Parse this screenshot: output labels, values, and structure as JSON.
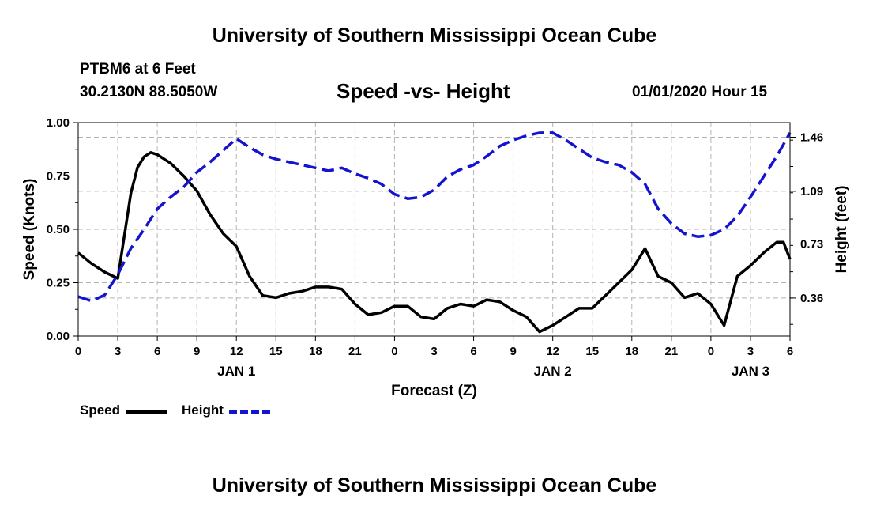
{
  "header": {
    "title": "University of Southern Mississippi Ocean Cube",
    "station": "PTBM6 at 6 Feet",
    "coords": "30.2130N 88.5050W",
    "chart_title": "Speed -vs- Height",
    "run_time": "01/01/2020 Hour 15"
  },
  "footer": {
    "title": "University of Southern Mississippi Ocean Cube"
  },
  "legend": {
    "speed_label": "Speed",
    "height_label": "Height"
  },
  "colors": {
    "speed": "#000000",
    "height": "#1414d0",
    "grid": "#b4b4b4"
  },
  "chart_data": {
    "type": "line",
    "title": "Speed -vs- Height",
    "xlabel": "Forecast (Z)",
    "ylabel": "Speed (Knots)",
    "y2label": "Height (feet)",
    "grid": true,
    "xlim": [
      0,
      54
    ],
    "ylim": [
      0,
      1.0
    ],
    "y2lim": [
      0.1,
      1.56
    ],
    "x_ticks": [
      0,
      3,
      6,
      9,
      12,
      15,
      18,
      21,
      24,
      27,
      30,
      33,
      36,
      39,
      42,
      45,
      48,
      51,
      54
    ],
    "x_tick_labels": [
      "0",
      "3",
      "6",
      "9",
      "12",
      "15",
      "18",
      "21",
      "0",
      "3",
      "6",
      "9",
      "12",
      "15",
      "18",
      "21",
      "0",
      "3",
      "6"
    ],
    "day_labels": [
      {
        "x": 12,
        "label": "JAN 1"
      },
      {
        "x": 36,
        "label": "JAN 2"
      },
      {
        "x": 51,
        "label": "JAN 3"
      }
    ],
    "y_ticks": [
      0.0,
      0.25,
      0.5,
      0.75,
      1.0
    ],
    "y_tick_labels": [
      "0.00",
      "0.25",
      "0.50",
      "0.75",
      "1.00"
    ],
    "y2_ticks": [
      0.36,
      0.73,
      1.09,
      1.46
    ],
    "y2_tick_labels": [
      "0.36",
      "0.73",
      "1.09",
      "1.46"
    ],
    "series": [
      {
        "name": "Speed",
        "axis": "left",
        "style": "solid",
        "x": [
          0,
          1,
          2,
          3,
          4,
          4.5,
          5,
          5.5,
          6,
          7,
          8,
          9,
          10,
          11,
          12,
          13,
          14,
          15,
          16,
          17,
          18,
          19,
          20,
          21,
          22,
          23,
          24,
          25,
          26,
          27,
          28,
          29,
          30,
          31,
          32,
          33,
          34,
          35,
          36,
          37,
          38,
          39,
          40,
          41,
          42,
          43,
          44,
          45,
          46,
          47,
          48,
          49,
          50,
          51,
          52,
          53,
          53.5,
          54
        ],
        "values": [
          0.39,
          0.34,
          0.3,
          0.27,
          0.67,
          0.79,
          0.84,
          0.86,
          0.85,
          0.81,
          0.75,
          0.68,
          0.57,
          0.48,
          0.42,
          0.28,
          0.19,
          0.18,
          0.2,
          0.21,
          0.23,
          0.23,
          0.22,
          0.15,
          0.1,
          0.11,
          0.14,
          0.14,
          0.09,
          0.08,
          0.13,
          0.15,
          0.14,
          0.17,
          0.16,
          0.12,
          0.09,
          0.02,
          0.05,
          0.09,
          0.13,
          0.13,
          0.19,
          0.25,
          0.31,
          0.41,
          0.28,
          0.25,
          0.18,
          0.2,
          0.15,
          0.05,
          0.28,
          0.33,
          0.39,
          0.44,
          0.44,
          0.36
        ]
      },
      {
        "name": "Height",
        "axis": "right",
        "style": "dashed",
        "x": [
          0,
          1,
          2,
          3,
          4,
          5,
          6,
          7,
          8,
          9,
          10,
          11,
          12,
          13,
          14,
          15,
          16,
          17,
          18,
          19,
          20,
          21,
          22,
          23,
          24,
          25,
          26,
          27,
          28,
          29,
          30,
          31,
          32,
          33,
          34,
          35,
          36,
          37,
          38,
          39,
          40,
          41,
          42,
          43,
          44,
          45,
          46,
          47,
          48,
          49,
          50,
          51,
          52,
          53,
          54
        ],
        "values": [
          0.37,
          0.34,
          0.38,
          0.52,
          0.7,
          0.83,
          0.97,
          1.05,
          1.12,
          1.22,
          1.29,
          1.37,
          1.45,
          1.39,
          1.34,
          1.31,
          1.29,
          1.27,
          1.25,
          1.23,
          1.25,
          1.21,
          1.18,
          1.14,
          1.07,
          1.04,
          1.05,
          1.1,
          1.19,
          1.24,
          1.27,
          1.33,
          1.4,
          1.44,
          1.47,
          1.49,
          1.49,
          1.44,
          1.38,
          1.32,
          1.29,
          1.27,
          1.22,
          1.14,
          0.97,
          0.87,
          0.8,
          0.78,
          0.79,
          0.83,
          0.92,
          1.05,
          1.19,
          1.33,
          1.49
        ]
      }
    ]
  }
}
